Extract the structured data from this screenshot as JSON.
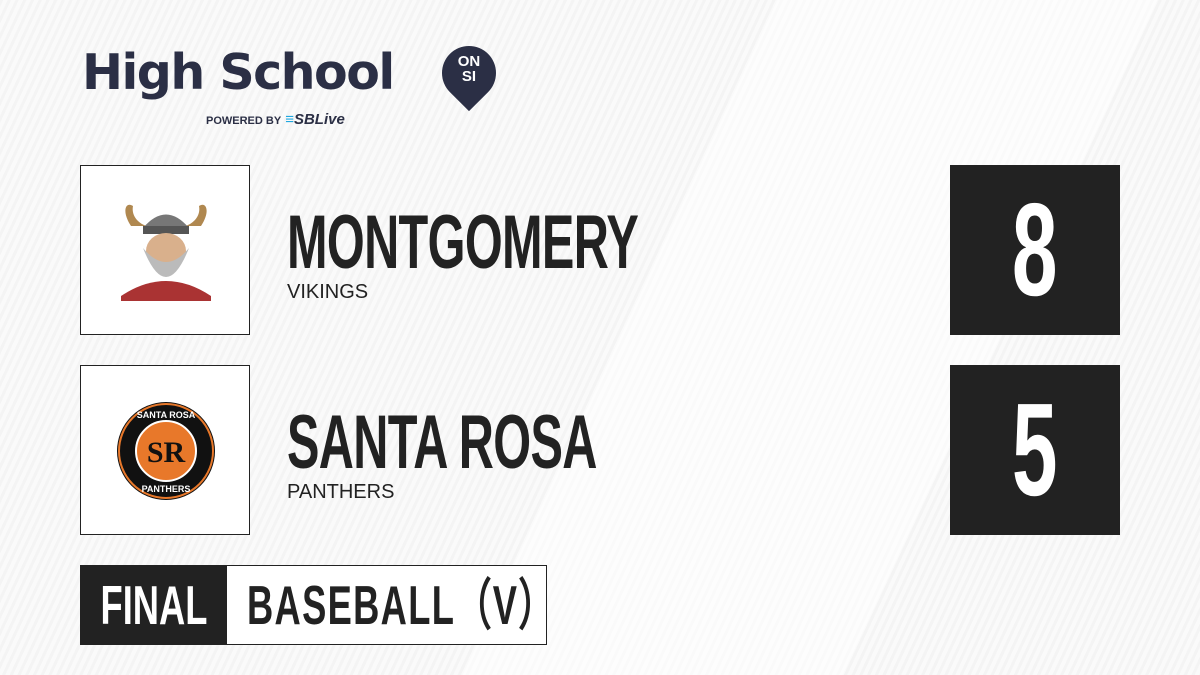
{
  "brand": {
    "title": "High School",
    "badge_top": "ON",
    "badge_bottom": "SI",
    "powered_by": "POWERED BY",
    "partner": "SBLive"
  },
  "teams": [
    {
      "name": "MONTGOMERY",
      "mascot": "VIKINGS",
      "score": "8",
      "logo": "viking-logo"
    },
    {
      "name": "SANTA ROSA",
      "mascot": "PANTHERS",
      "score": "5",
      "logo": "panthers-logo",
      "logo_text": "SANTA ROSA",
      "logo_initials": "SR",
      "logo_bottom": "PANTHERS"
    }
  ],
  "status": "FINAL",
  "sport": "BASEBALL（V）",
  "colors": {
    "dark": "#222222",
    "brand": "#2b2f45",
    "partner": "#20a8e0",
    "panthers_orange": "#e8782a"
  }
}
